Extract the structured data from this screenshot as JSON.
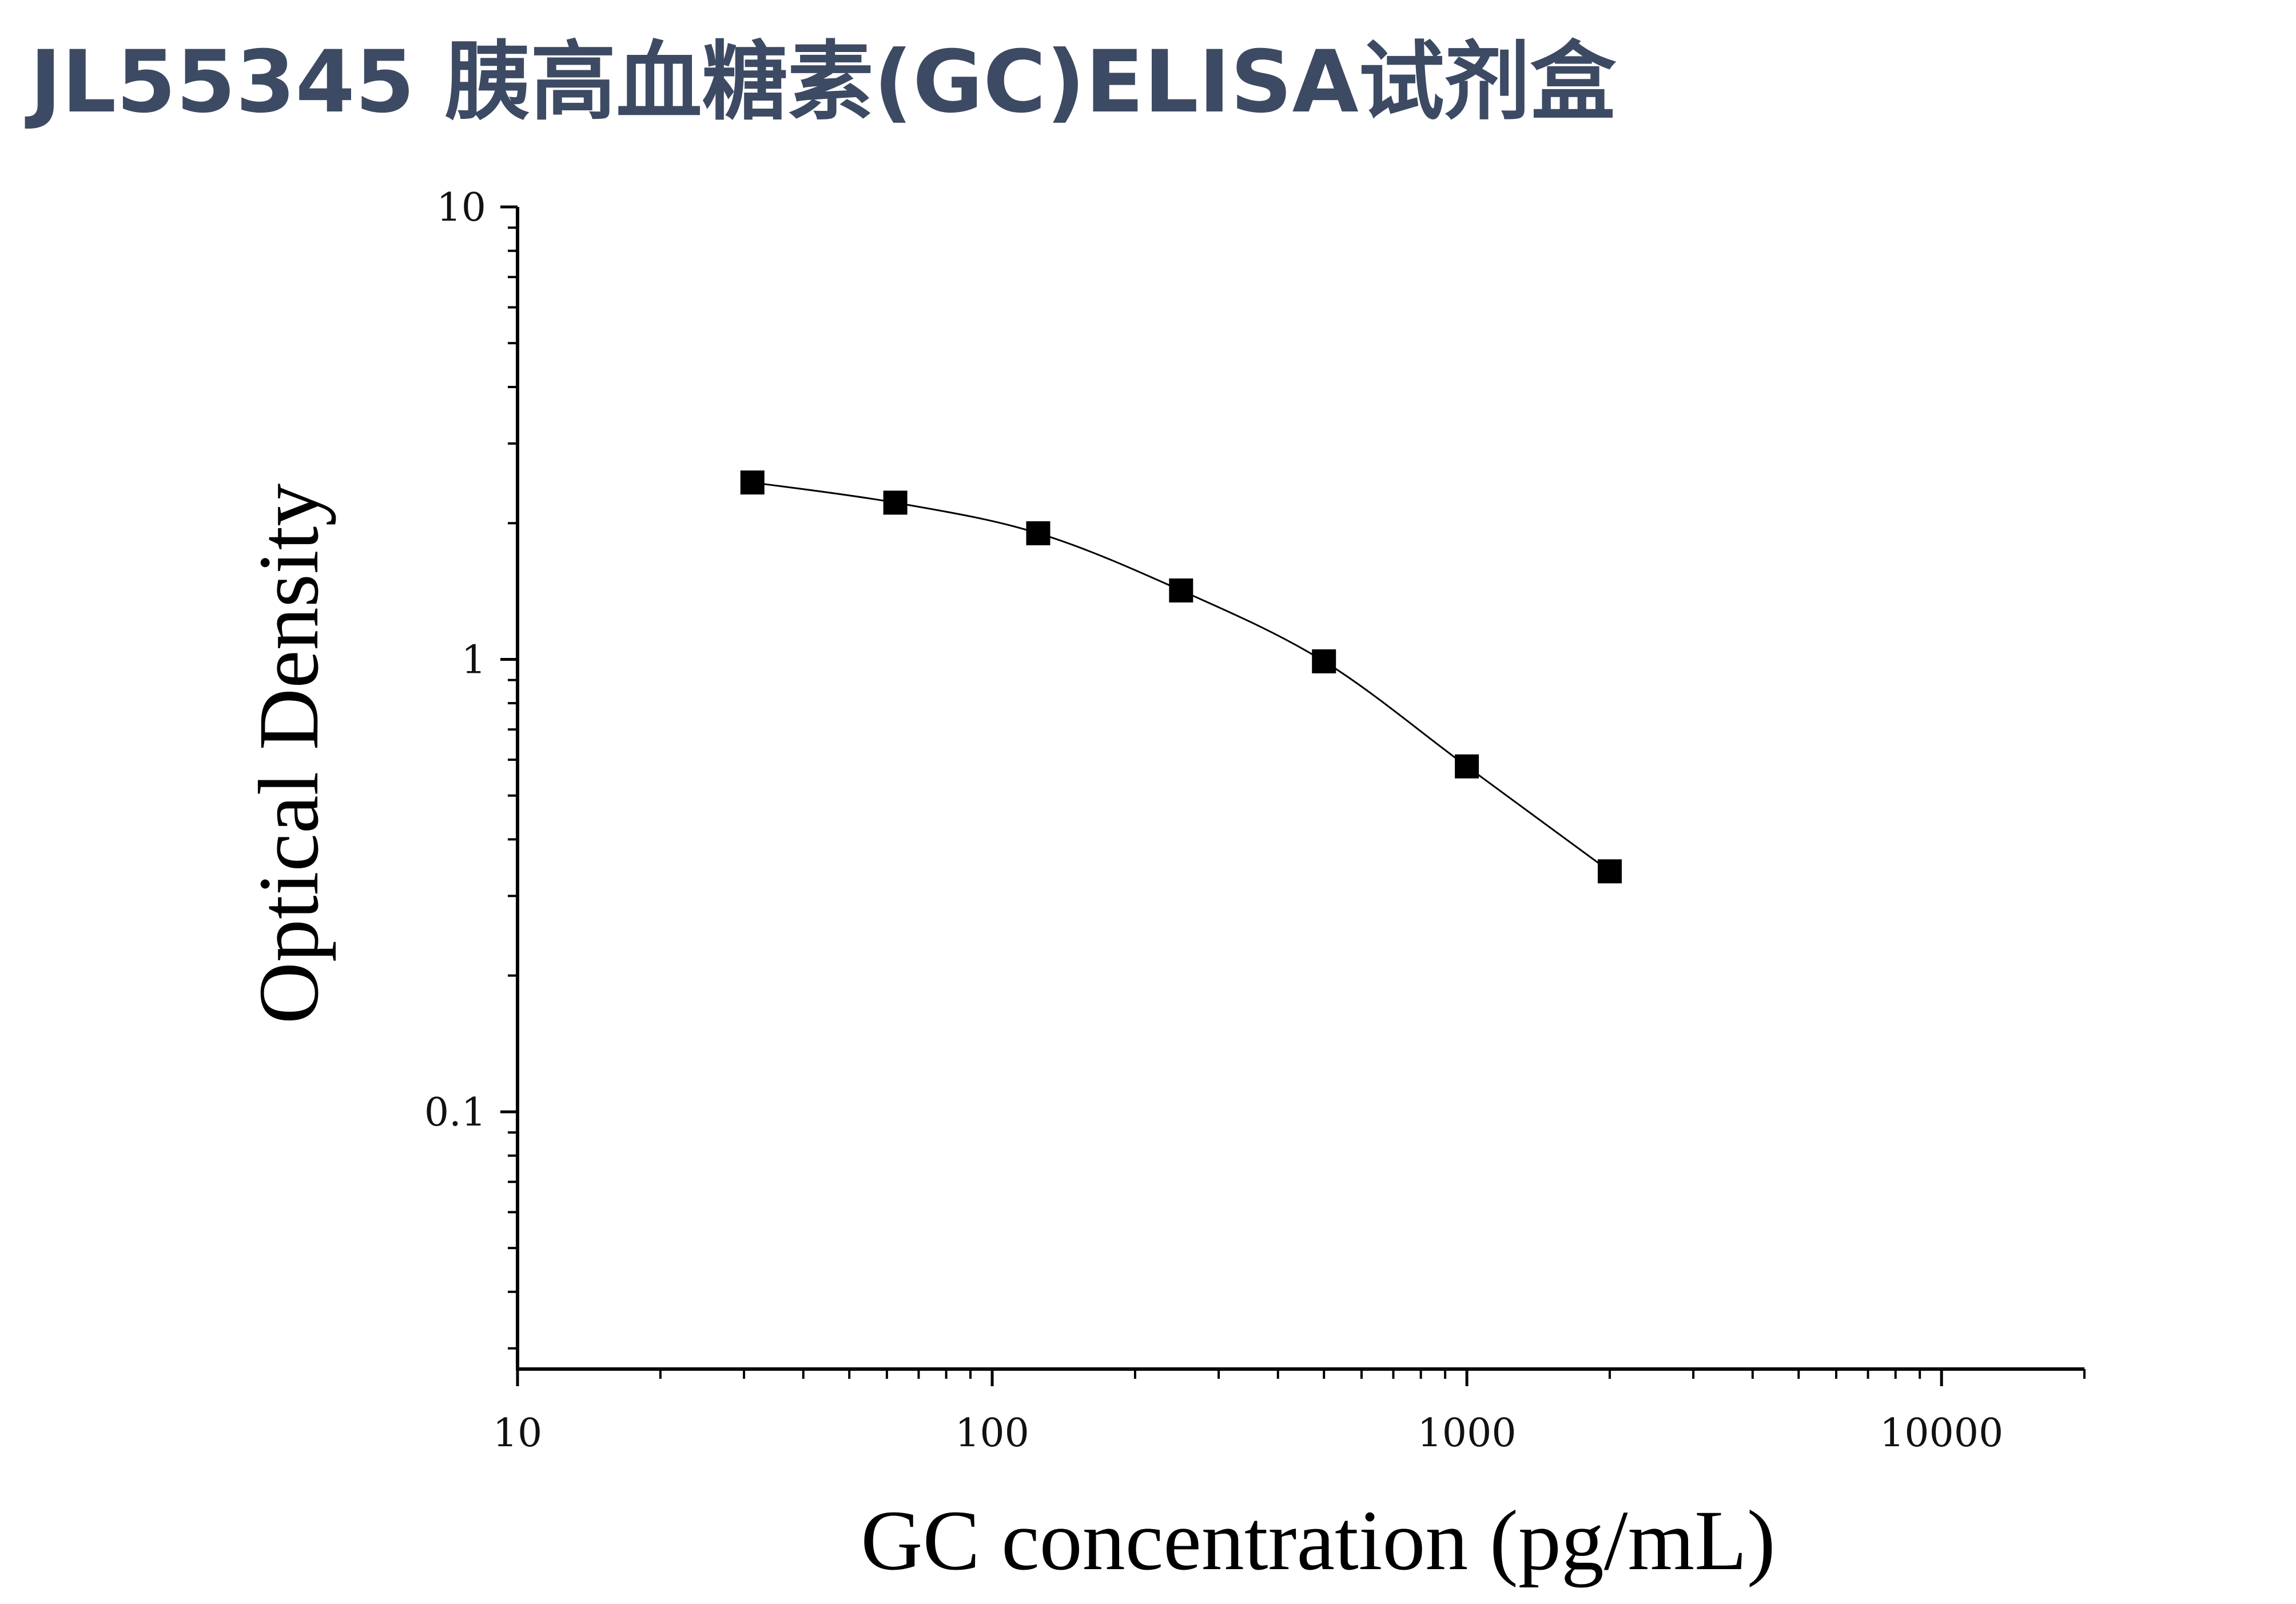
{
  "title": "JL55345 胰高血糖素(GC)ELISA试剂盒",
  "chart_data": {
    "type": "scatter",
    "title": "JL55345 胰高血糖素(GC)ELISA试剂盒",
    "xlabel": "GC concentration (pg/mL)",
    "ylabel": "Optical Density",
    "x_scale": "log",
    "y_scale": "log",
    "xlim": [
      10,
      20000
    ],
    "ylim": [
      0.027,
      10
    ],
    "x_tick_labels": [
      "10",
      "100",
      "1000",
      "10000"
    ],
    "y_tick_labels": [
      "0.1",
      "1",
      "10"
    ],
    "grid": false,
    "legend": "none",
    "series": [
      {
        "marker": "square",
        "fit_curve": true,
        "x": [
          31.25,
          62.5,
          125,
          250,
          500,
          1000,
          2000
        ],
        "y": [
          2.46,
          2.22,
          1.9,
          1.42,
          0.99,
          0.58,
          0.34
        ]
      }
    ],
    "colors": {
      "axis": "#000000",
      "marker": "#000000",
      "curve": "#000000",
      "title": "#3d4a63"
    }
  }
}
